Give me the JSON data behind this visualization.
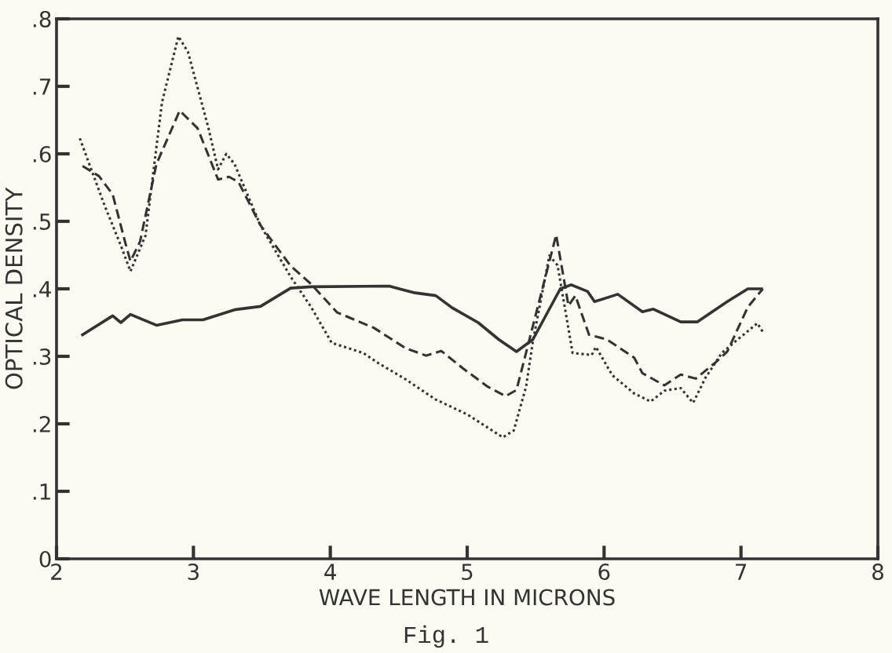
{
  "chart_data": {
    "type": "line",
    "xlabel": "WAVE LENGTH IN MICRONS",
    "ylabel": "OPTICAL DENSITY",
    "annotations": [
      "Fig. 1"
    ],
    "xlim": [
      2,
      8
    ],
    "ylim": [
      0,
      0.8
    ],
    "xticks": [
      2,
      3,
      4,
      5,
      6,
      7,
      8
    ],
    "yticks": [
      {
        "value": 0,
        "label": "0"
      },
      {
        "value": 0.1,
        "label": ".1"
      },
      {
        "value": 0.2,
        "label": ".2"
      },
      {
        "value": 0.3,
        "label": ".3"
      },
      {
        "value": 0.4,
        "label": ".4"
      },
      {
        "value": 0.5,
        "label": ".5"
      },
      {
        "value": 0.6,
        "label": ".6"
      },
      {
        "value": 0.7,
        "label": ".7"
      },
      {
        "value": 0.8,
        "label": ".8"
      }
    ],
    "grid": false,
    "legend": false,
    "marker": "none",
    "series": [
      {
        "color": "#333333",
        "line_style": "solid",
        "x": [
          2.19,
          2.41,
          2.47,
          2.54,
          2.73,
          2.92,
          3.07,
          3.3,
          3.49,
          3.71,
          3.86,
          4.43,
          4.62,
          4.77,
          4.89,
          5.08,
          5.23,
          5.36,
          5.48,
          5.68,
          5.76,
          5.88,
          5.93,
          6.1,
          6.28,
          6.36,
          6.56,
          6.68,
          6.9,
          7.05,
          7.15
        ],
        "values": [
          0.332,
          0.36,
          0.35,
          0.362,
          0.346,
          0.354,
          0.354,
          0.369,
          0.374,
          0.401,
          0.403,
          0.404,
          0.394,
          0.39,
          0.372,
          0.35,
          0.325,
          0.307,
          0.325,
          0.4,
          0.406,
          0.396,
          0.381,
          0.392,
          0.366,
          0.37,
          0.351,
          0.351,
          0.381,
          0.4,
          0.4
        ]
      },
      {
        "color": "#333333",
        "line_style": "dashed",
        "x": [
          2.19,
          2.31,
          2.41,
          2.5,
          2.54,
          2.61,
          2.73,
          2.9,
          3.03,
          3.18,
          3.26,
          3.33,
          3.49,
          3.71,
          3.86,
          4.05,
          4.32,
          4.55,
          4.7,
          4.81,
          4.97,
          5.15,
          5.28,
          5.36,
          5.65,
          5.74,
          5.79,
          5.89,
          6.02,
          6.22,
          6.28,
          6.44,
          6.56,
          6.67,
          6.82,
          6.9,
          7.05,
          7.16
        ],
        "values": [
          0.582,
          0.567,
          0.54,
          0.47,
          0.441,
          0.47,
          0.585,
          0.664,
          0.638,
          0.562,
          0.566,
          0.558,
          0.494,
          0.434,
          0.407,
          0.365,
          0.342,
          0.312,
          0.301,
          0.308,
          0.282,
          0.255,
          0.241,
          0.25,
          0.48,
          0.375,
          0.39,
          0.332,
          0.325,
          0.298,
          0.275,
          0.257,
          0.273,
          0.267,
          0.292,
          0.307,
          0.373,
          0.4
        ]
      },
      {
        "color": "#333333",
        "line_style": "dotted",
        "x": [
          2.17,
          2.35,
          2.47,
          2.54,
          2.65,
          2.77,
          2.89,
          2.96,
          3.11,
          3.18,
          3.24,
          3.3,
          3.49,
          3.71,
          3.86,
          4.01,
          4.24,
          4.35,
          4.55,
          4.77,
          5.0,
          5.26,
          5.34,
          5.43,
          5.48,
          5.6,
          5.66,
          5.77,
          5.91,
          5.94,
          6.06,
          6.22,
          6.34,
          6.44,
          6.56,
          6.65,
          6.74,
          6.86,
          6.97,
          7.12,
          7.16
        ],
        "values": [
          0.623,
          0.524,
          0.464,
          0.426,
          0.479,
          0.676,
          0.774,
          0.751,
          0.638,
          0.577,
          0.6,
          0.585,
          0.494,
          0.418,
          0.373,
          0.32,
          0.305,
          0.29,
          0.266,
          0.236,
          0.214,
          0.18,
          0.19,
          0.255,
          0.322,
          0.449,
          0.435,
          0.305,
          0.302,
          0.314,
          0.272,
          0.245,
          0.233,
          0.249,
          0.253,
          0.231,
          0.268,
          0.305,
          0.324,
          0.349,
          0.336
        ]
      }
    ]
  }
}
